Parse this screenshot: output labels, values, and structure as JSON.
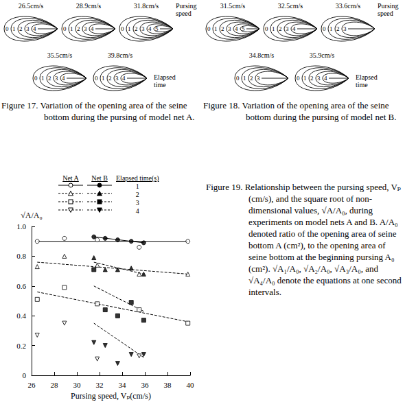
{
  "diagrams": [
    {
      "caption": "Figure 17.  Variation of the opening area of the seine bottom during the pursing of model net A.",
      "pursing_speed_note": "Pursing speed",
      "elapsed_time_note": "Elapsed time",
      "shapes": [
        {
          "speed": "26.5cm/s",
          "contours": [
            "0",
            "1",
            "2",
            "3",
            "4"
          ]
        },
        {
          "speed": "28.9cm/s",
          "contours": [
            "0",
            "1",
            "2",
            "3",
            "4"
          ]
        },
        {
          "speed": "31.8cm/s",
          "contours": [
            "0",
            "1",
            "2",
            "3",
            "4",
            "5"
          ]
        },
        {
          "speed": "35.5cm/s",
          "contours": [
            "0",
            "1",
            "2",
            "3",
            "4"
          ]
        },
        {
          "speed": "39.8cm/s",
          "contours": [
            "0",
            "1",
            "2",
            "3",
            "4"
          ]
        }
      ]
    },
    {
      "caption": "Figure 18.  Variation of the opening area of the seine bottom during the pursing of model net B.",
      "pursing_speed_note": "Pursing speed",
      "elapsed_time_note": "Elapsed time",
      "shapes": [
        {
          "speed": "31.5cm/s",
          "contours": [
            "0",
            "1",
            "2",
            "3",
            "4",
            "5"
          ]
        },
        {
          "speed": "32.5cm/s",
          "contours": [
            "0",
            "1",
            "2",
            "3",
            "4"
          ]
        },
        {
          "speed": "33.6cm/s",
          "contours": [
            "0",
            "1",
            "2",
            "3"
          ]
        },
        {
          "speed": "34.8cm/s",
          "contours": [
            "0",
            "1",
            "2",
            "3"
          ]
        },
        {
          "speed": "35.9cm/s",
          "contours": [
            "0",
            "1",
            "2",
            "3",
            "4"
          ]
        }
      ]
    }
  ],
  "figure_19": {
    "caption": "Figure 19.  Relationship between the pursing speed, Vₚ (cm/s), and the square root of non-dimensional values, √A/A₀, during experiments on model nets A and B. A/A₀ denoted ratio of the opening area of seine bottom A (cm²), to the opening area of seine bottom at the beginning pursing A₀ (cm²). √A₁/A₀, √A₂/A₀, √A₃/A₀, and √A₄/A₀ denote the equations at one second intervals."
  },
  "chart_data": {
    "type": "scatter",
    "x_label": "Pursing speed, Vₚ(cm/s)",
    "y_label": "√A/A₀",
    "xlim": [
      26,
      40
    ],
    "xticks": [
      26,
      28,
      30,
      32,
      34,
      36,
      38,
      40
    ],
    "ylim": [
      0,
      1.0
    ],
    "yticks": [
      {
        "value": 0,
        "label": "0"
      },
      0.2,
      0.4,
      0.6,
      0.8,
      {
        "value": 1.0,
        "label": "1.0"
      }
    ],
    "grid": false,
    "legend": "top",
    "legend_headers": [
      "Net A",
      "Net B",
      "Elapsed time(s)"
    ],
    "series": [
      {
        "net": "Net A",
        "elapsed_time": 1,
        "marker": "circle-open",
        "color": "#000000",
        "x": [
          26.5,
          28.9,
          31.8,
          35.5,
          39.8
        ],
        "values": [
          0.9,
          0.92,
          0.91,
          0.86,
          0.9
        ]
      },
      {
        "net": "Net B",
        "elapsed_time": 1,
        "marker": "circle-filled",
        "color": "#000000",
        "x": [
          31.5,
          32.5,
          33.6,
          34.8,
          35.9
        ],
        "values": [
          0.93,
          0.92,
          0.91,
          0.9,
          0.89
        ]
      },
      {
        "net": "Net A",
        "elapsed_time": 2,
        "marker": "triangle-open",
        "color": "#000000",
        "x": [
          26.5,
          28.9,
          31.8,
          35.5,
          39.8
        ],
        "values": [
          0.73,
          0.8,
          0.74,
          0.68,
          0.68
        ]
      },
      {
        "net": "Net B",
        "elapsed_time": 2,
        "marker": "triangle-filled",
        "color": "#000000",
        "x": [
          31.5,
          32.5,
          33.6,
          34.8,
          35.9
        ],
        "values": [
          0.79,
          0.71,
          0.71,
          0.72,
          0.68
        ]
      },
      {
        "net": "Net A",
        "elapsed_time": 3,
        "marker": "square-open",
        "color": "#000000",
        "x": [
          26.5,
          28.9,
          31.8,
          35.5,
          39.8
        ],
        "values": [
          0.51,
          0.59,
          0.48,
          0.44,
          0.35
        ]
      },
      {
        "net": "Net B",
        "elapsed_time": 3,
        "marker": "square-filled",
        "color": "#000000",
        "x": [
          31.5,
          32.5,
          33.6,
          34.8,
          35.9
        ],
        "values": [
          0.71,
          0.44,
          0.4,
          0.49,
          0.37
        ]
      },
      {
        "net": "Net A",
        "elapsed_time": 4,
        "marker": "triangle-down-open",
        "color": "#000000",
        "x": [
          26.5,
          28.9,
          31.8,
          35.5
        ],
        "values": [
          0.27,
          0.35,
          0.11,
          0.13
        ]
      },
      {
        "net": "Net B",
        "elapsed_time": 4,
        "marker": "triangle-down-filled",
        "color": "#000000",
        "x": [
          31.5,
          32.5,
          33.6,
          34.8,
          35.9
        ],
        "values": [
          0.22,
          0.2,
          0.08,
          0.14,
          0.14
        ]
      }
    ],
    "fit_lines": [
      {
        "net": "Net A",
        "elapsed_time": 1,
        "line_style": "solid",
        "color": "#000000",
        "x": [
          26.5,
          39.8
        ],
        "values": [
          0.9,
          0.9
        ]
      },
      {
        "net": "Net B",
        "elapsed_time": 1,
        "line_style": "solid",
        "color": "#000000",
        "x": [
          31.5,
          35.9
        ],
        "values": [
          0.93,
          0.89
        ]
      },
      {
        "net": "Net A",
        "elapsed_time": 2,
        "line_style": "dashed",
        "color": "#000000",
        "x": [
          26.5,
          39.8
        ],
        "values": [
          0.76,
          0.68
        ]
      },
      {
        "net": "Net B",
        "elapsed_time": 2,
        "line_style": "dashed",
        "color": "#000000",
        "x": [
          31.5,
          35.9
        ],
        "values": [
          0.76,
          0.68
        ]
      },
      {
        "net": "Net A",
        "elapsed_time": 3,
        "line_style": "dashed",
        "color": "#000000",
        "x": [
          26.5,
          39.8
        ],
        "values": [
          0.56,
          0.36
        ]
      },
      {
        "net": "Net B",
        "elapsed_time": 3,
        "line_style": "dashed",
        "color": "#000000",
        "x": [
          31.5,
          35.9
        ],
        "values": [
          0.6,
          0.43
        ]
      },
      {
        "net": "Net B",
        "elapsed_time": 4,
        "line_style": "dashed",
        "color": "#000000",
        "x": [
          31.5,
          35.9
        ],
        "values": [
          0.35,
          0.12
        ]
      }
    ]
  }
}
